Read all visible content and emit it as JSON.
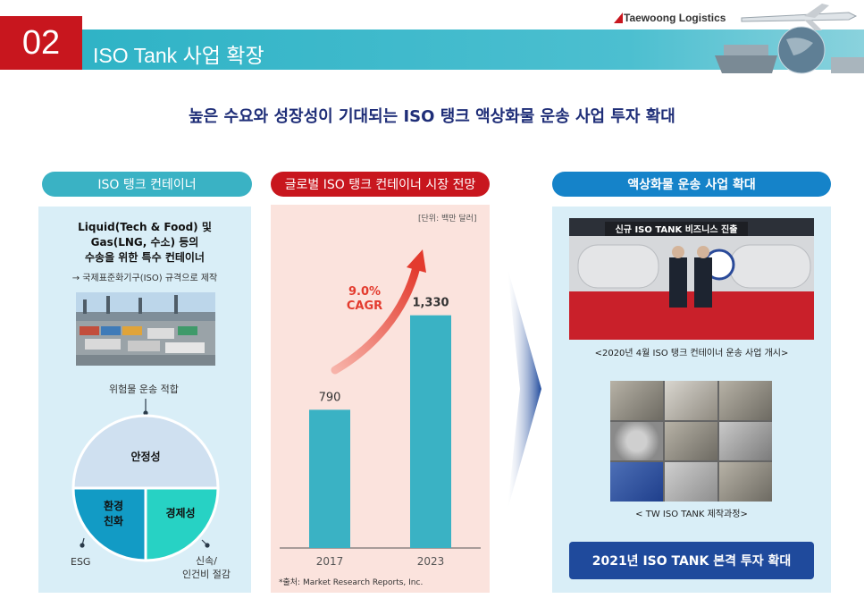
{
  "header": {
    "section_number": "02",
    "section_title": "ISO Tank 사업 확장",
    "brand": "Taewoong Logistics"
  },
  "headline": "높은 수요와 성장성이 기대되는 ISO 탱크 액상화물 운송 사업 투자 확대",
  "left_panel": {
    "pill": "ISO 탱크 컨테이너",
    "title_lines": [
      "Liquid(Tech & Food) 및",
      "Gas(LNG, 수소) 등의",
      "수송을 위한 특수 컨테이너"
    ],
    "note": "→ 국제표준화기구(ISO) 규격으로 제작",
    "top_label": "위험물 운송 적합",
    "segments": {
      "stability": "안정성",
      "eco_line1": "환경",
      "eco_line2": "친화",
      "economy": "경제성"
    },
    "bottom_left_label": "ESG",
    "bottom_right_line1": "신속/",
    "bottom_right_line2": "인건비 절감"
  },
  "middle_panel": {
    "pill": "글로벌 ISO 탱크 컨테이너 시장 전망",
    "unit": "[단위: 백만 달러]",
    "source": "*출처: Market Research Reports, Inc."
  },
  "chart_data": {
    "type": "bar",
    "title": "글로벌 ISO 탱크 컨테이너 시장 전망",
    "unit": "[단위: 백만 달러]",
    "categories": [
      "2017",
      "2023"
    ],
    "values": [
      790,
      1330
    ],
    "value_labels": [
      "790",
      "1,330"
    ],
    "ylim": [
      0,
      1500
    ],
    "annotation_line1": "9.0%",
    "annotation_line2": "CAGR",
    "bar_color": "#3ab2c4",
    "arrow_color": "#e33b2e",
    "grid": false
  },
  "right_panel": {
    "pill": "액상화물 운송 사업 확대",
    "photo1_banner": "신규 ISO TANK 비즈니스 진출",
    "photo1_caption": "<2020년 4월 ISO 탱크 컨테이너 운송 사업 개시>",
    "photo2_caption": "< TW ISO TANK 제작과정>",
    "cta": "2021년 ISO TANK 본격 투자 확대"
  },
  "colors": {
    "brand_red": "#c8161e",
    "teal": "#3ab2c4",
    "navy": "#1f2e78",
    "blue": "#1583c9"
  }
}
